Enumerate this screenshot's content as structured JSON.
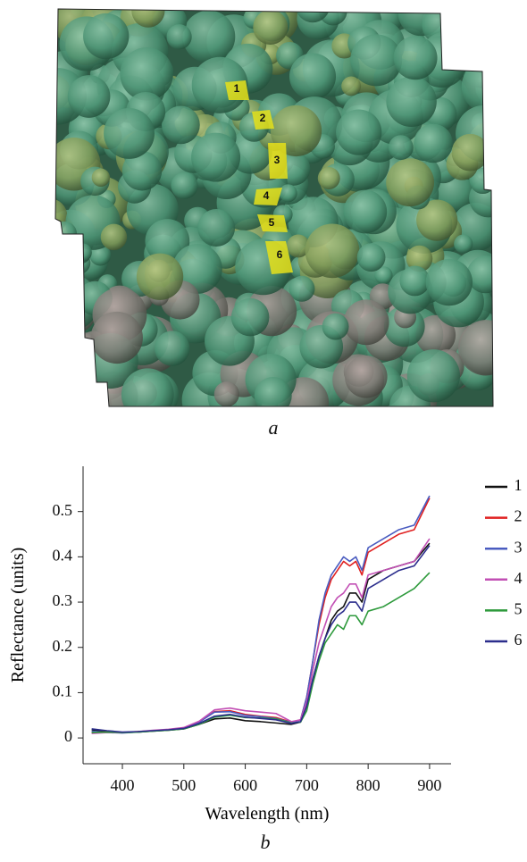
{
  "figure_a": {
    "markers": [
      "1",
      "2",
      "3",
      "4",
      "5",
      "6"
    ],
    "caption": "a"
  },
  "chart_data": {
    "type": "line",
    "xlabel": "Wavelength (nm)",
    "ylabel": "Reflectance (units)",
    "x": [
      350,
      375,
      400,
      425,
      450,
      475,
      500,
      525,
      550,
      575,
      600,
      625,
      650,
      675,
      690,
      700,
      710,
      720,
      730,
      740,
      750,
      760,
      770,
      780,
      790,
      800,
      825,
      850,
      875,
      900
    ],
    "series": [
      {
        "name": "1",
        "color": "#111111",
        "values": [
          0.018,
          0.014,
          0.012,
          0.013,
          0.015,
          0.017,
          0.02,
          0.03,
          0.042,
          0.044,
          0.038,
          0.036,
          0.033,
          0.03,
          0.035,
          0.07,
          0.13,
          0.18,
          0.22,
          0.26,
          0.28,
          0.29,
          0.32,
          0.32,
          0.3,
          0.35,
          0.37,
          0.38,
          0.39,
          0.43
        ]
      },
      {
        "name": "2",
        "color": "#e02020",
        "values": [
          0.012,
          0.013,
          0.012,
          0.014,
          0.016,
          0.018,
          0.021,
          0.035,
          0.058,
          0.06,
          0.052,
          0.048,
          0.045,
          0.035,
          0.04,
          0.09,
          0.17,
          0.25,
          0.31,
          0.35,
          0.37,
          0.39,
          0.38,
          0.39,
          0.36,
          0.41,
          0.43,
          0.45,
          0.46,
          0.53
        ]
      },
      {
        "name": "3",
        "color": "#4a5cc0",
        "values": [
          0.015,
          0.012,
          0.011,
          0.013,
          0.016,
          0.018,
          0.022,
          0.035,
          0.057,
          0.058,
          0.05,
          0.047,
          0.043,
          0.034,
          0.04,
          0.09,
          0.17,
          0.26,
          0.32,
          0.36,
          0.38,
          0.4,
          0.39,
          0.4,
          0.37,
          0.42,
          0.44,
          0.46,
          0.47,
          0.535
        ]
      },
      {
        "name": "4",
        "color": "#c24fb4",
        "values": [
          0.01,
          0.012,
          0.012,
          0.014,
          0.017,
          0.019,
          0.023,
          0.037,
          0.062,
          0.066,
          0.06,
          0.057,
          0.054,
          0.036,
          0.04,
          0.08,
          0.15,
          0.21,
          0.25,
          0.29,
          0.31,
          0.32,
          0.34,
          0.34,
          0.31,
          0.36,
          0.37,
          0.38,
          0.39,
          0.44
        ]
      },
      {
        "name": "5",
        "color": "#2e9a3c",
        "values": [
          0.012,
          0.013,
          0.012,
          0.013,
          0.015,
          0.017,
          0.02,
          0.03,
          0.046,
          0.05,
          0.045,
          0.044,
          0.042,
          0.033,
          0.035,
          0.06,
          0.12,
          0.17,
          0.21,
          0.23,
          0.25,
          0.24,
          0.27,
          0.27,
          0.25,
          0.28,
          0.29,
          0.31,
          0.33,
          0.365
        ]
      },
      {
        "name": "6",
        "color": "#2b2d8c",
        "values": [
          0.02,
          0.016,
          0.013,
          0.014,
          0.016,
          0.018,
          0.021,
          0.032,
          0.048,
          0.052,
          0.046,
          0.043,
          0.04,
          0.032,
          0.036,
          0.07,
          0.13,
          0.18,
          0.22,
          0.25,
          0.27,
          0.28,
          0.3,
          0.3,
          0.28,
          0.33,
          0.35,
          0.37,
          0.38,
          0.425
        ]
      }
    ],
    "xlim": [
      336,
      935
    ],
    "ylim": [
      -0.057,
      0.6
    ],
    "xticks": [
      400,
      500,
      600,
      700,
      800,
      900
    ],
    "yticks": [
      0,
      0.1,
      0.2,
      0.3,
      0.4,
      0.5
    ],
    "grid": false,
    "legend": "right"
  },
  "caption_b": "b"
}
